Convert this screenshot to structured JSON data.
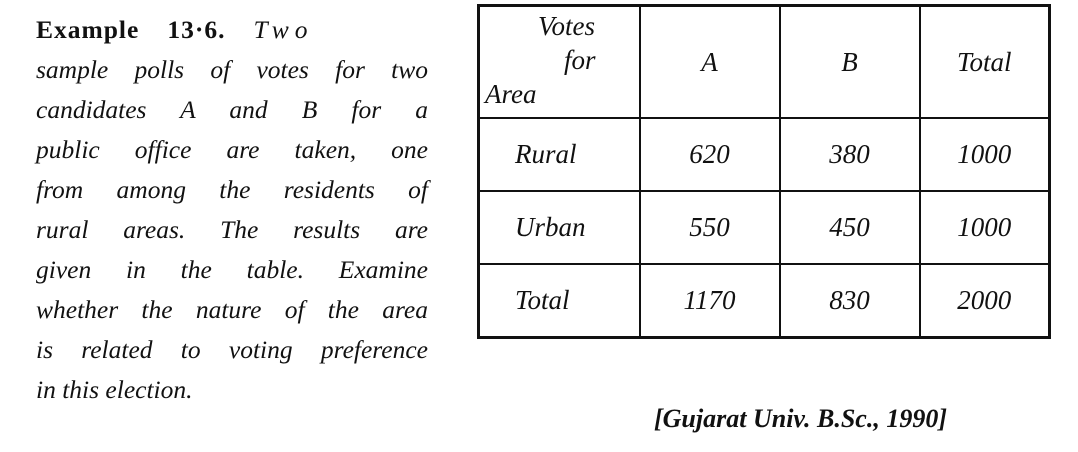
{
  "problem": {
    "heading": "Example",
    "number": "13·6.",
    "first_word": "Two",
    "lines": [
      "sample polls of votes for two",
      "candidates A  and  B  for a",
      "public office are taken, one",
      "from among the residents of",
      "rural areas. The results are",
      "given in the table. Examine",
      "whether the nature of the area",
      "is related to voting preference",
      "in this election."
    ]
  },
  "table": {
    "corner": {
      "top": "Votes",
      "middle": "for",
      "bottom": "Area"
    },
    "columns": [
      "A",
      "B",
      "Total"
    ],
    "rows": [
      {
        "label": "Rural",
        "values": [
          "620",
          "380",
          "1000"
        ]
      },
      {
        "label": "Urban",
        "values": [
          "550",
          "450",
          "1000"
        ]
      },
      {
        "label": "Total",
        "values": [
          "1170",
          "830",
          "2000"
        ]
      }
    ]
  },
  "citation": "[Gujarat Univ. B.Sc., 1990]"
}
